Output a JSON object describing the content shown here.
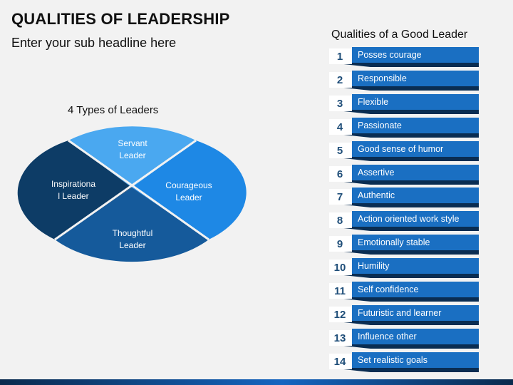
{
  "slide": {
    "title": "QUALITIES OF LEADERSHIP",
    "subtitle": "Enter your sub headline here"
  },
  "diagram": {
    "title": "4 Types of Leaders",
    "quadrants": [
      {
        "id": "servant",
        "line1": "Servant",
        "line2": "Leader",
        "color": "#4aa8f0"
      },
      {
        "id": "courageous",
        "line1": "Courageous",
        "line2": "Leader",
        "color": "#1e88e5"
      },
      {
        "id": "thoughtful",
        "line1": "Thoughtful",
        "line2": "Leader",
        "color": "#155a9b"
      },
      {
        "id": "inspirational",
        "line1": "Inspirationa",
        "line2": "l Leader",
        "color": "#0d3c66"
      }
    ]
  },
  "qualities": {
    "title": "Qualities of a Good Leader",
    "bar_color": "#1a6fc2",
    "shadow_color": "#0a2d52",
    "number_color": "#1f4e79",
    "items": [
      {
        "num": "1",
        "label": "Posses courage"
      },
      {
        "num": "2",
        "label": "Responsible"
      },
      {
        "num": "3",
        "label": "Flexible"
      },
      {
        "num": "4",
        "label": "Passionate"
      },
      {
        "num": "5",
        "label": "Good sense of humor"
      },
      {
        "num": "6",
        "label": "Assertive"
      },
      {
        "num": "7",
        "label": "Authentic"
      },
      {
        "num": "8",
        "label": "Action oriented work style"
      },
      {
        "num": "9",
        "label": "Emotionally stable"
      },
      {
        "num": "10",
        "label": "Humility"
      },
      {
        "num": "11",
        "label": "Self confidence"
      },
      {
        "num": "12",
        "label": "Futuristic and learner"
      },
      {
        "num": "13",
        "label": "Influence other"
      },
      {
        "num": "14",
        "label": "Set realistic goals"
      }
    ]
  }
}
